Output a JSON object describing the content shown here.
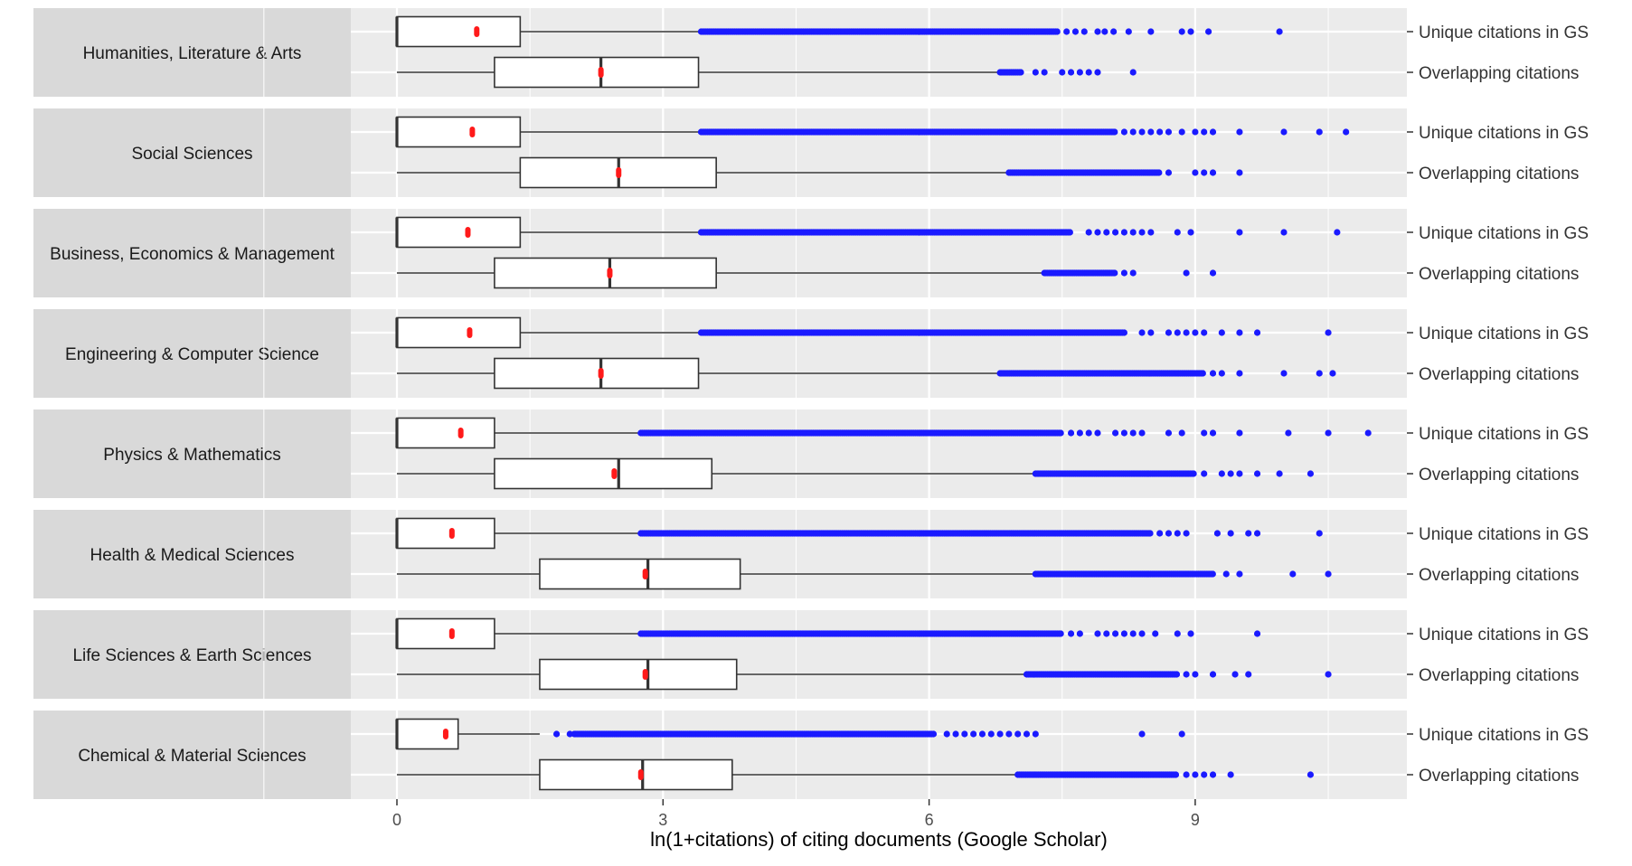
{
  "chart_data": {
    "type": "boxplot",
    "orientation": "horizontal",
    "title": "",
    "xlabel": "ln(1+citations) of citing documents (Google Scholar)",
    "x_ticks": [
      "0",
      "3",
      "6",
      "9"
    ],
    "x_tick_values": [
      0,
      3,
      6,
      9
    ],
    "xlim": [
      -0.55,
      11.4
    ],
    "grid": true,
    "row_labels": [
      "Unique citations in GS",
      "Overlapping citations"
    ],
    "colors": {
      "panel_bg": "#ebebeb",
      "strip_bg": "#d9d9d9",
      "grid": "#ffffff",
      "box_fill": "#ffffff",
      "box_line": "#333333",
      "outlier": "#1a1aff",
      "mean": "#ff1a1a"
    },
    "panels": [
      {
        "field": "Humanities, Literature & Arts",
        "rows": [
          {
            "series": "Unique citations in GS",
            "min": 0,
            "q1": 0,
            "median": 0,
            "q3": 1.39,
            "whisker_high": 3.43,
            "mean": 0.9,
            "outlier_range": [
              3.43,
              7.45
            ],
            "outlier_points": [
              7.55,
              7.65,
              7.75,
              7.9,
              7.98,
              8.08,
              8.25,
              8.5,
              8.85,
              8.95,
              9.15,
              9.95
            ]
          },
          {
            "series": "Overlapping citations",
            "min": 0,
            "q1": 1.1,
            "median": 2.3,
            "q3": 3.4,
            "whisker_high": 6.8,
            "mean": 2.3,
            "outlier_range": [
              6.8,
              7.05
            ],
            "outlier_points": [
              7.2,
              7.3,
              7.5,
              7.6,
              7.7,
              7.8,
              7.9,
              8.3
            ]
          }
        ]
      },
      {
        "field": "Social Sciences",
        "rows": [
          {
            "series": "Unique citations in GS",
            "min": 0,
            "q1": 0,
            "median": 0,
            "q3": 1.39,
            "whisker_high": 3.43,
            "mean": 0.85,
            "outlier_range": [
              3.43,
              8.1
            ],
            "outlier_points": [
              8.2,
              8.3,
              8.4,
              8.5,
              8.6,
              8.7,
              8.85,
              9.0,
              9.1,
              9.2,
              9.5,
              10.0,
              10.4,
              10.7
            ]
          },
          {
            "series": "Overlapping citations",
            "min": 0,
            "q1": 1.39,
            "median": 2.5,
            "q3": 3.6,
            "whisker_high": 6.9,
            "mean": 2.5,
            "outlier_range": [
              6.9,
              8.6
            ],
            "outlier_points": [
              8.7,
              9.0,
              9.1,
              9.2,
              9.5
            ]
          }
        ]
      },
      {
        "field": "Business, Economics & Management",
        "rows": [
          {
            "series": "Unique citations in GS",
            "min": 0,
            "q1": 0,
            "median": 0,
            "q3": 1.39,
            "whisker_high": 3.43,
            "mean": 0.8,
            "outlier_range": [
              3.43,
              7.6
            ],
            "outlier_points": [
              7.8,
              7.9,
              8.0,
              8.1,
              8.2,
              8.3,
              8.4,
              8.5,
              8.8,
              8.95,
              9.5,
              10.0,
              10.6
            ]
          },
          {
            "series": "Overlapping citations",
            "min": 0,
            "q1": 1.1,
            "median": 2.4,
            "q3": 3.6,
            "whisker_high": 7.3,
            "mean": 2.4,
            "outlier_range": [
              7.3,
              8.1
            ],
            "outlier_points": [
              8.2,
              8.3,
              8.9,
              9.2
            ]
          }
        ]
      },
      {
        "field": "Engineering & Computer Science",
        "rows": [
          {
            "series": "Unique citations in GS",
            "min": 0,
            "q1": 0,
            "median": 0,
            "q3": 1.39,
            "whisker_high": 3.43,
            "mean": 0.82,
            "outlier_range": [
              3.43,
              8.2
            ],
            "outlier_points": [
              8.4,
              8.5,
              8.7,
              8.8,
              8.9,
              9.0,
              9.1,
              9.3,
              9.5,
              9.7,
              10.5
            ]
          },
          {
            "series": "Overlapping citations",
            "min": 0,
            "q1": 1.1,
            "median": 2.3,
            "q3": 3.4,
            "whisker_high": 6.8,
            "mean": 2.3,
            "outlier_range": [
              6.8,
              9.1
            ],
            "outlier_points": [
              9.2,
              9.3,
              9.5,
              10.0,
              10.4,
              10.55
            ]
          }
        ]
      },
      {
        "field": "Physics & Mathematics",
        "rows": [
          {
            "series": "Unique citations in GS",
            "min": 0,
            "q1": 0,
            "median": 0,
            "q3": 1.1,
            "whisker_high": 2.75,
            "mean": 0.72,
            "outlier_range": [
              2.75,
              7.5
            ],
            "outlier_points": [
              7.6,
              7.7,
              7.8,
              7.9,
              8.1,
              8.2,
              8.3,
              8.4,
              8.7,
              8.85,
              9.1,
              9.2,
              9.5,
              10.05,
              10.5,
              10.95
            ]
          },
          {
            "series": "Overlapping citations",
            "min": 0,
            "q1": 1.1,
            "median": 2.5,
            "q3": 3.55,
            "whisker_high": 7.2,
            "mean": 2.45,
            "outlier_range": [
              7.2,
              9.0
            ],
            "outlier_points": [
              9.1,
              9.3,
              9.4,
              9.5,
              9.7,
              9.95,
              10.3
            ]
          }
        ]
      },
      {
        "field": "Health & Medical Sciences",
        "rows": [
          {
            "series": "Unique citations in GS",
            "min": 0,
            "q1": 0,
            "median": 0,
            "q3": 1.1,
            "whisker_high": 2.75,
            "mean": 0.62,
            "outlier_range": [
              2.75,
              8.5
            ],
            "outlier_points": [
              8.6,
              8.7,
              8.8,
              8.9,
              9.25,
              9.4,
              9.6,
              9.7,
              10.4
            ]
          },
          {
            "series": "Overlapping citations",
            "min": 0,
            "q1": 1.61,
            "median": 2.83,
            "q3": 3.87,
            "whisker_high": 7.2,
            "mean": 2.8,
            "outlier_range": [
              7.2,
              9.2
            ],
            "outlier_points": [
              9.35,
              9.5,
              10.1,
              10.5
            ]
          }
        ]
      },
      {
        "field": "Life Sciences & Earth Sciences",
        "rows": [
          {
            "series": "Unique citations in GS",
            "min": 0,
            "q1": 0,
            "median": 0,
            "q3": 1.1,
            "whisker_high": 2.75,
            "mean": 0.62,
            "outlier_range": [
              2.75,
              7.5
            ],
            "outlier_points": [
              7.6,
              7.7,
              7.9,
              8.0,
              8.1,
              8.2,
              8.3,
              8.4,
              8.55,
              8.8,
              8.95,
              9.7
            ]
          },
          {
            "series": "Overlapping citations",
            "min": 0,
            "q1": 1.61,
            "median": 2.83,
            "q3": 3.83,
            "whisker_high": 7.1,
            "mean": 2.8,
            "outlier_range": [
              7.1,
              8.8
            ],
            "outlier_points": [
              8.9,
              9.0,
              9.2,
              9.45,
              9.6,
              10.5
            ]
          }
        ]
      },
      {
        "field": "Chemical & Material Sciences",
        "rows": [
          {
            "series": "Unique citations in GS",
            "min": 0,
            "q1": 0,
            "median": 0,
            "q3": 0.69,
            "whisker_high": 1.61,
            "mean": 0.55,
            "outlier_range": [
              2.0,
              6.05
            ],
            "outlier_points": [
              1.8,
              1.95,
              6.2,
              6.3,
              6.4,
              6.5,
              6.6,
              6.7,
              6.8,
              6.9,
              7.0,
              7.1,
              7.2,
              8.4,
              8.85
            ]
          },
          {
            "series": "Overlapping citations",
            "min": 0,
            "q1": 1.61,
            "median": 2.77,
            "q3": 3.78,
            "whisker_high": 7.0,
            "mean": 2.75,
            "outlier_range": [
              7.0,
              8.8
            ],
            "outlier_points": [
              8.9,
              9.0,
              9.1,
              9.2,
              9.4,
              10.3
            ]
          }
        ]
      }
    ]
  }
}
